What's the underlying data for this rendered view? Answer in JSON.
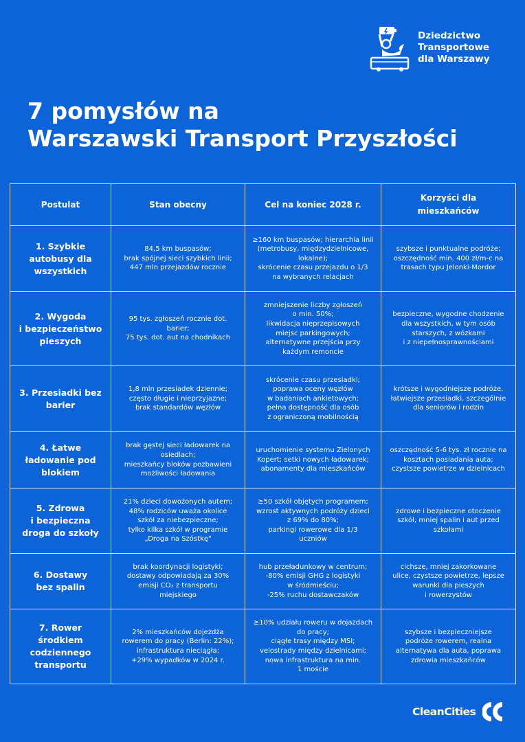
{
  "brand": {
    "org_name": "Dziedzictwo\nTransportowe\ndla Warszawy",
    "footer_logo": "CleanCities"
  },
  "title": {
    "line1": "7 pomysłów na",
    "line2": "Warszawski Transport Przyszłości"
  },
  "colors": {
    "background": "#0c64d8",
    "text": "#ffffff",
    "grid": "#d7e3f7"
  },
  "table": {
    "headers": [
      "Postulat",
      "Stan obecny",
      "Cel na koniec 2028 r.",
      "Korzyści dla\nmieszkańców"
    ],
    "rows": [
      {
        "postulat": "1. Szybkie\nautobusy dla\nwszystkich",
        "stan": "84,5 km buspasów;\nbrak spójnej sieci szybkich linii;\n447 mln przejazdów rocznie",
        "cel": "≥160 km buspasów; hierarchia linii\n(metrobusy, międzydzielnicowe,\nlokalne);\nskrócenie czasu przejazdu o 1/3\nna wybranych relacjach",
        "korzysci": "szybsze i punktualne podróże;\noszczędność min. 400 zł/m-c na\ntrasach typu Jelonki-Mordor"
      },
      {
        "postulat": "2. Wygoda\ni bezpieczeństwo\npieszych",
        "stan": "95 tys. zgłoszeń rocznie dot.\nbarier;\n75 tys. dot. aut na chodnikach",
        "cel": "zmniejszenie liczby zgłoszeń\no min. 50%;\nlikwidacja nieprzepisowych\nmiejsc parkingowych;\nalternatywne przejścia przy\nkażdym remoncie",
        "korzysci": "bezpieczne, wygodne chodzenie\ndla wszystkich, w tym osób\nstarszych, z wózkami\ni z niepełnosprawnościami"
      },
      {
        "postulat": "3. Przesiadki bez\nbarier",
        "stan": "1,8 mln przesiadek dziennie;\nczęsto długie i nieprzyjazne;\nbrak standardów węzłów",
        "cel": "skrócenie czasu przesiadki;\npoprawa oceny węzłów\nw badaniach ankietowych;\npełna dostępność dla osób\nz ograniczoną mobilnością",
        "korzysci": "krótsze i wygodniejsze podróże,\nłatwiejsze przesiadki, szczególnie\ndla seniorów i rodzin"
      },
      {
        "postulat": "4. Łatwe\nładowanie pod\nblokiem",
        "stan": "brak gęstej sieci ładowarek na\nosiedlach;\nmieszkańcy bloków pozbawieni\nmożliwości ładowania",
        "cel": "uruchomienie systemu Zielonych\nKopert; setki nowych ładowarek;\nabonamenty dla mieszkańców",
        "korzysci": "oszczędność 5-6 tys. zł rocznie na\nkosztach posiadania auta;\nczystsze powietrze w dzielnicach"
      },
      {
        "postulat": "5. Zdrowa\ni bezpieczna\ndroga do szkoły",
        "stan": "21% dzieci dowożonych autem;\n48% rodziców uważa okolice\nszkół za niebezpieczne;\ntylko kilka szkół w programie\n„Droga na Szóstkę\"",
        "cel": "≥50 szkół objętych programem;\nwzrost aktywnych podróży dzieci\nz 69% do 80%;\nparkingi rowerowe dla 1/3\nuczniów",
        "korzysci": "zdrowe i bezpieczne otoczenie\nszkół, mniej spalin i aut przed\nszkołami"
      },
      {
        "postulat": "6. Dostawy\nbez spalin",
        "stan": "brak koordynacji logistyki;\ndostawy odpowiadają za 30%\nemisji CO₂ z transportu\nmiejskiego",
        "cel": "hub przeładunkowy w centrum;\n-80% emisji GHG z logistyki\nw śródmieściu;\n-25% ruchu dostawczaków",
        "korzysci": "cichsze, mniej zakorkowane\nulice, czystsze powietrze, lepsze\nwarunki dla pieszych\ni rowerzystów"
      },
      {
        "postulat": "7. Rower\nśrodkiem\ncodziennego\ntransportu",
        "stan": "2% mieszkańców dojeżdża\nrowerem do pracy (Berlin: 22%);\ninfrastruktura nieciągła;\n+29% wypadków w 2024 r.",
        "cel": "≥10% udziału roweru w dojazdach\ndo pracy;\nciągłe trasy między MSI;\nvelostrady między dzielnicami;\nnowa infrastruktura na min.\n1 moście",
        "korzysci": "szybsze i bezpieczniejsze\npodróże rowerem, realna\nalternatywa dla auta, poprawa\nzdrowia mieszkańców"
      }
    ]
  }
}
